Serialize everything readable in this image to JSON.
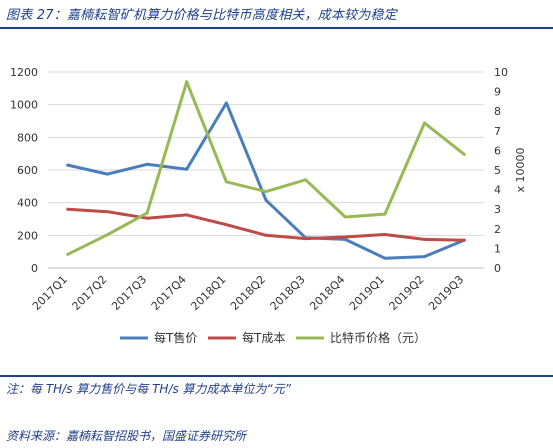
{
  "header": {
    "title": "图表 27：嘉楠耘智矿机算力价格与比特币高度相关，成本较为稳定"
  },
  "footer": {
    "note": "注：每 TH/s 算力售价与每 TH/s 算力成本单位为“元”",
    "source": "资料来源：嘉楠耘智招股书，国盛证券研究所"
  },
  "chart_data": {
    "type": "line",
    "title": "",
    "xlabel": "",
    "ylabel": "",
    "y2label": "x 10000",
    "categories": [
      "2017Q1",
      "2017Q2",
      "2017Q3",
      "2017Q4",
      "2018Q1",
      "2018Q2",
      "2018Q3",
      "2018Q4",
      "2019Q1",
      "2019Q2",
      "2019Q3"
    ],
    "ylim": [
      0,
      1200
    ],
    "y_ticks": [
      0,
      200,
      400,
      600,
      800,
      1000,
      1200
    ],
    "y2lim": [
      0,
      10
    ],
    "y2_ticks": [
      0,
      1,
      2,
      3,
      4,
      5,
      6,
      7,
      8,
      9,
      10
    ],
    "grid": true,
    "legend_position": "bottom",
    "series": [
      {
        "name": "每T售价",
        "axis": "left",
        "color": "#4a7ebb",
        "values": [
          630,
          575,
          635,
          605,
          1010,
          415,
          185,
          175,
          60,
          70,
          170
        ]
      },
      {
        "name": "每T成本",
        "axis": "left",
        "color": "#be4b48",
        "values": [
          360,
          345,
          305,
          325,
          265,
          200,
          180,
          190,
          205,
          175,
          170
        ]
      },
      {
        "name": "比特币价格（元）",
        "axis": "right",
        "color": "#98b954",
        "values": [
          0.7,
          1.7,
          2.8,
          9.5,
          4.4,
          3.9,
          4.5,
          2.6,
          2.75,
          7.4,
          5.8
        ]
      }
    ]
  }
}
